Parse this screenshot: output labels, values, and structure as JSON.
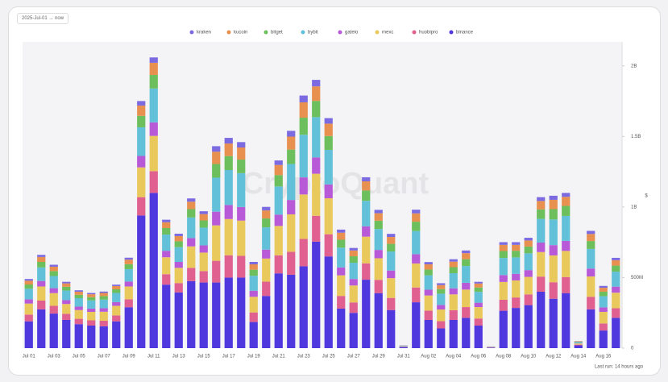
{
  "chart_data": {
    "type": "stacked_bar",
    "date_range": "2025-Jul-01 → now",
    "watermark": "CryptoQuant",
    "footer": "Last run: 14 hours ago",
    "y_label": "$",
    "categories": [
      "Jul 01",
      null,
      "Jul 03",
      null,
      "Jul 05",
      null,
      "Jul 07",
      null,
      "Jul 09",
      null,
      "Jul 11",
      null,
      "Jul 13",
      null,
      "Jul 15",
      null,
      "Jul 17",
      null,
      "Jul 19",
      null,
      "Jul 21",
      null,
      "Jul 23",
      null,
      "Jul 25",
      null,
      "Jul 27",
      null,
      "Jul 29",
      null,
      "Jul 31",
      null,
      "Aug 02",
      null,
      "Aug 04",
      null,
      "Aug 06",
      null,
      "Aug 08",
      null,
      "Aug 10",
      null,
      "Aug 12",
      null,
      "Aug 14",
      null,
      "Aug 16",
      null
    ],
    "ylim": [
      0,
      2170000000.0
    ],
    "yticks": [
      0,
      {
        "value": 500000000.0,
        "label": "500M"
      },
      {
        "value": 1000000000.0,
        "label": "1B"
      },
      {
        "value": 1500000000.0,
        "label": "1.5B"
      },
      {
        "value": 2000000000.0,
        "label": "2B"
      }
    ],
    "grid": false,
    "legend": "top",
    "series": [
      {
        "name": "kraken",
        "color": "#7b6ae0",
        "values": [
          12000000.0,
          15000000.0,
          14000000.0,
          11000000.0,
          10000000.0,
          9000000.0,
          10000000.0,
          10000000.0,
          14000000.0,
          32000000.0,
          38000000.0,
          18000000.0,
          17000000.0,
          23000000.0,
          20000000.0,
          39000000.0,
          40000000.0,
          38000000.0,
          17000000.0,
          25000000.0,
          32000000.0,
          41000000.0,
          48000000.0,
          46000000.0,
          39000000.0,
          22000000.0,
          18000000.0,
          29000000.0,
          24000000.0,
          22000000.0,
          1000000.0,
          26000000.0,
          16000000.0,
          13000000.0,
          17000000.0,
          19000000.0,
          12000000.0,
          1000000.0,
          19000000.0,
          19000000.0,
          19000000.0,
          27000000.0,
          29000000.0,
          28000000.0,
          1000000.0,
          22000000.0,
          13000000.0,
          17000000.0
        ]
      },
      {
        "name": "kucoin",
        "color": "#e8904f",
        "values": [
          27000000.0,
          35000000.0,
          31000000.0,
          24000000.0,
          22000000.0,
          21000000.0,
          22000000.0,
          23000000.0,
          32000000.0,
          73000000.0,
          86000000.0,
          41000000.0,
          37000000.0,
          53000000.0,
          45000000.0,
          87000000.0,
          89000000.0,
          86000000.0,
          38000000.0,
          57000000.0,
          72000000.0,
          92000000.0,
          109000000.0,
          103000000.0,
          88000000.0,
          50000000.0,
          41000000.0,
          65000000.0,
          53000000.0,
          49000000.0,
          1000000.0,
          59000000.0,
          37000000.0,
          29000000.0,
          39000000.0,
          43000000.0,
          28000000.0,
          1000000.0,
          44000000.0,
          42000000.0,
          43000000.0,
          60000000.0,
          66000000.0,
          64000000.0,
          3000000.0,
          50000000.0,
          28000000.0,
          38000000.0
        ]
      },
      {
        "name": "bitget",
        "color": "#6cbf5c",
        "values": [
          30000000.0,
          39000000.0,
          35000000.0,
          27000000.0,
          24000000.0,
          23000000.0,
          25000000.0,
          26000000.0,
          35000000.0,
          81000000.0,
          96000000.0,
          46000000.0,
          42000000.0,
          59000000.0,
          51000000.0,
          97000000.0,
          99000000.0,
          96000000.0,
          43000000.0,
          63000000.0,
          80000000.0,
          102000000.0,
          121000000.0,
          115000000.0,
          98000000.0,
          56000000.0,
          46000000.0,
          73000000.0,
          59000000.0,
          54000000.0,
          1000000.0,
          66000000.0,
          41000000.0,
          32000000.0,
          43000000.0,
          48000000.0,
          31000000.0,
          1000000.0,
          49000000.0,
          47000000.0,
          48000000.0,
          67000000.0,
          73000000.0,
          71000000.0,
          3000000.0,
          56000000.0,
          32000000.0,
          43000000.0
        ]
      },
      {
        "name": "bybit",
        "color": "#62c1d8",
        "values": [
          75000000.0,
          96000000.0,
          86000000.0,
          68000000.0,
          60000000.0,
          58000000.0,
          61000000.0,
          65000000.0,
          88000000.0,
          203000000.0,
          240000000.0,
          115000000.0,
          104000000.0,
          146000000.0,
          126000000.0,
          241000000.0,
          248000000.0,
          240000000.0,
          106000000.0,
          158000000.0,
          200000000.0,
          255000000.0,
          302000000.0,
          286000000.0,
          245000000.0,
          140000000.0,
          115000000.0,
          181000000.0,
          148000000.0,
          135000000.0,
          3000000.0,
          164000000.0,
          102000000.0,
          80000000.0,
          107000000.0,
          119000000.0,
          77000000.0,
          1000000.0,
          121000000.0,
          116000000.0,
          119000000.0,
          168000000.0,
          182000000.0,
          177000000.0,
          7000000.0,
          139000000.0,
          79000000.0,
          106000000.0
        ]
      },
      {
        "name": "gateio",
        "color": "#b85ad8",
        "values": [
          30000000.0,
          39000000.0,
          35000000.0,
          27000000.0,
          24000000.0,
          23000000.0,
          25000000.0,
          26000000.0,
          35000000.0,
          81000000.0,
          96000000.0,
          46000000.0,
          42000000.0,
          59000000.0,
          51000000.0,
          97000000.0,
          99000000.0,
          96000000.0,
          43000000.0,
          63000000.0,
          80000000.0,
          102000000.0,
          121000000.0,
          115000000.0,
          98000000.0,
          56000000.0,
          46000000.0,
          73000000.0,
          59000000.0,
          54000000.0,
          1000000.0,
          66000000.0,
          41000000.0,
          32000000.0,
          43000000.0,
          48000000.0,
          31000000.0,
          1000000.0,
          49000000.0,
          47000000.0,
          48000000.0,
          67000000.0,
          73000000.0,
          71000000.0,
          3000000.0,
          56000000.0,
          32000000.0,
          43000000.0
        ]
      },
      {
        "name": "mexc",
        "color": "#e9c95c",
        "values": [
          78000000.0,
          100000000.0,
          90000000.0,
          70000000.0,
          62000000.0,
          60000000.0,
          64000000.0,
          68000000.0,
          91000000.0,
          211000000.0,
          250000000.0,
          120000000.0,
          108000000.0,
          152000000.0,
          131000000.0,
          251000000.0,
          257000000.0,
          250000000.0,
          111000000.0,
          164000000.0,
          208000000.0,
          265000000.0,
          315000000.0,
          298000000.0,
          255000000.0,
          146000000.0,
          120000000.0,
          189000000.0,
          153000000.0,
          140000000.0,
          3000000.0,
          170000000.0,
          107000000.0,
          83000000.0,
          112000000.0,
          124000000.0,
          81000000.0,
          2000000.0,
          126000000.0,
          121000000.0,
          124000000.0,
          174000000.0,
          190000000.0,
          185000000.0,
          8000000.0,
          144000000.0,
          82000000.0,
          110000000.0
        ]
      },
      {
        "name": "huobipro",
        "color": "#e0608f",
        "values": [
          48000000.0,
          62000000.0,
          55000000.0,
          43000000.0,
          38000000.0,
          37000000.0,
          39000000.0,
          42000000.0,
          56000000.0,
          130000000.0,
          154000000.0,
          74000000.0,
          66000000.0,
          94000000.0,
          81000000.0,
          154000000.0,
          158000000.0,
          154000000.0,
          68000000.0,
          101000000.0,
          128000000.0,
          163000000.0,
          194000000.0,
          183000000.0,
          157000000.0,
          90000000.0,
          74000000.0,
          116000000.0,
          94000000.0,
          86000000.0,
          2000000.0,
          105000000.0,
          66000000.0,
          51000000.0,
          69000000.0,
          76000000.0,
          50000000.0,
          1000000.0,
          78000000.0,
          74000000.0,
          76000000.0,
          107000000.0,
          117000000.0,
          114000000.0,
          5000000.0,
          89000000.0,
          50000000.0,
          68000000.0
        ]
      },
      {
        "name": "binance",
        "color": "#5038df",
        "values": [
          190000000.0,
          275000000.0,
          245000000.0,
          200000000.0,
          170000000.0,
          160000000.0,
          155000000.0,
          190000000.0,
          290000000.0,
          940000000.0,
          1100000000.0,
          450000000.0,
          395000000.0,
          475000000.0,
          465000000.0,
          465000000.0,
          500000000.0,
          500000000.0,
          185000000.0,
          370000000.0,
          530000000.0,
          520000000.0,
          580000000.0,
          755000000.0,
          650000000.0,
          280000000.0,
          250000000.0,
          485000000.0,
          390000000.0,
          270000000.0,
          8000000.0,
          325000000.0,
          200000000.0,
          140000000.0,
          200000000.0,
          215000000.0,
          160000000.0,
          4000000.0,
          265000000.0,
          285000000.0,
          305000000.0,
          400000000.0,
          350000000.0,
          390000000.0,
          20000000.0,
          275000000.0,
          125000000.0,
          215000000.0
        ]
      }
    ]
  }
}
